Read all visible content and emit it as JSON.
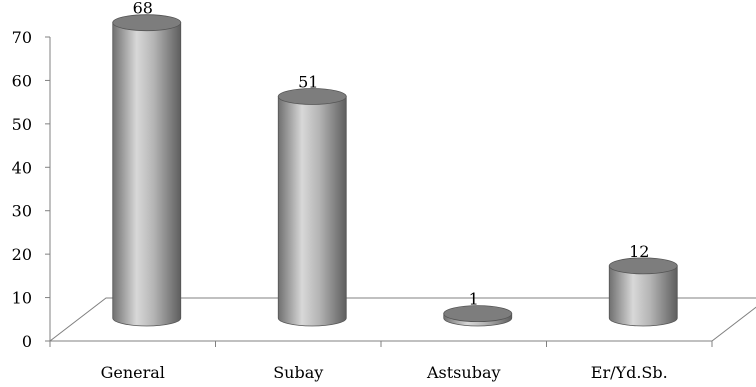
{
  "chart_data": {
    "type": "bar",
    "style": "3d-cylinder",
    "categories": [
      "General",
      "Subay",
      "Astsubay",
      "Er/Yd.Sb."
    ],
    "values": [
      68,
      51,
      1,
      12
    ],
    "data_labels": [
      "68",
      "51",
      "1",
      "12"
    ],
    "title": "",
    "xlabel": "",
    "ylabel": "",
    "ylim": [
      0,
      70
    ],
    "yticks": [
      0,
      10,
      20,
      30,
      40,
      50,
      60,
      70
    ],
    "ytick_labels": [
      "0",
      "10",
      "20",
      "30",
      "40",
      "50",
      "60",
      "70"
    ],
    "grid": false,
    "legend": "none",
    "colors": {
      "bar_dark": "#6b6b6b",
      "bar_mid": "#bdbdbd",
      "bar_light": "#dcdcdc",
      "bar_top": "#7d7d7d",
      "axis": "#808080"
    }
  }
}
